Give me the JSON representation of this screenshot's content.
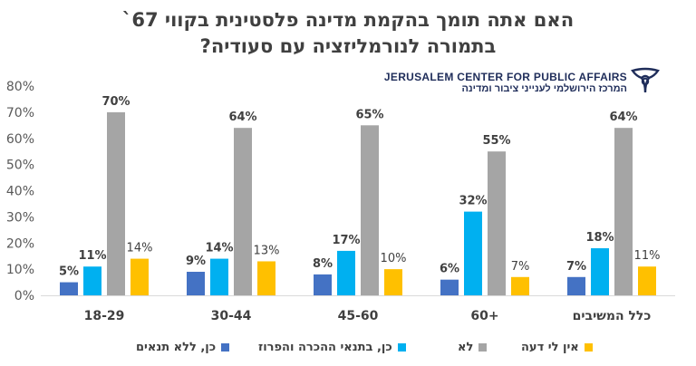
{
  "header": {
    "title_line1": "האם אתה תומך בהקמת מדינה פלסטינית בקווי 67`",
    "title_line2": "בתמורה לנורמליזציה עם סעודיה?"
  },
  "logo": {
    "text_en": "JERUSALEM CENTER FOR PUBLIC AFFAIRS",
    "text_he": "המרכז הירושלמי לענייני ציבור ומדינה",
    "icon": "jcpa-emblem-icon",
    "color": "#1f2d5a"
  },
  "chart_data": {
    "type": "bar",
    "categories": [
      "18-29",
      "30-44",
      "45-60",
      "60+",
      "כלל המשיבים"
    ],
    "series": [
      {
        "name": "כן, ללא תנאים",
        "color": "#4472c4",
        "values": [
          5,
          9,
          8,
          6,
          7
        ]
      },
      {
        "name": "כן, בתנאי ההכרה והפרוז",
        "color": "#00b0f0",
        "values": [
          11,
          14,
          17,
          32,
          18
        ]
      },
      {
        "name": "לא",
        "color": "#a5a5a5",
        "values": [
          70,
          64,
          65,
          55,
          64
        ]
      },
      {
        "name": "אין לי דעה",
        "color": "#ffc000",
        "values": [
          14,
          13,
          10,
          7,
          11
        ]
      }
    ],
    "bold_labels": [
      true,
      true,
      true,
      false
    ],
    "ylim": [
      0,
      80
    ],
    "yticks": [
      0,
      10,
      20,
      30,
      40,
      50,
      60,
      70,
      80
    ],
    "ytick_suffix": "%",
    "value_suffix": "%",
    "grid": false,
    "legend": "bottom"
  }
}
